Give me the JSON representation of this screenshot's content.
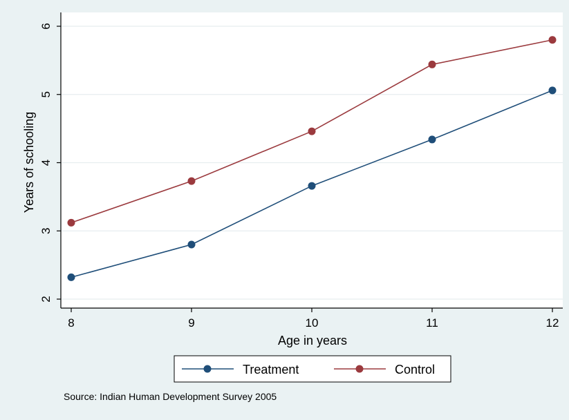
{
  "chart_data": {
    "type": "line",
    "x": [
      8,
      9,
      10,
      11,
      12
    ],
    "xlabel": "Age in years",
    "ylabel": "Years of schooling",
    "xlim": [
      8,
      12
    ],
    "ylim": [
      2,
      6
    ],
    "xticks": [
      "8",
      "9",
      "10",
      "11",
      "12"
    ],
    "yticks": [
      "2",
      "3",
      "4",
      "5",
      "6"
    ],
    "grid": true,
    "legend_position": "bottom",
    "series": [
      {
        "name": "Treatment",
        "color": "#1f4e79",
        "values": [
          2.32,
          2.8,
          3.66,
          4.34,
          5.06
        ]
      },
      {
        "name": "Control",
        "color": "#9b3a3e",
        "values": [
          3.12,
          3.73,
          4.46,
          5.44,
          5.8
        ]
      }
    ],
    "note": "Source: Indian Human Development Survey 2005"
  }
}
